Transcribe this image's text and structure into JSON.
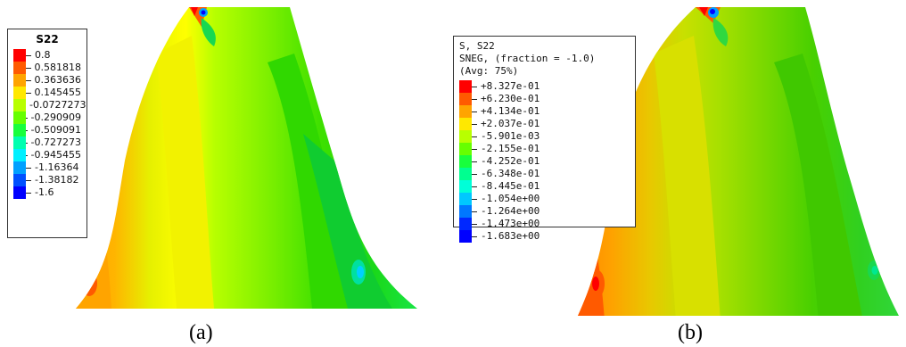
{
  "panel_a": {
    "legend": {
      "title": "S22",
      "entries": [
        {
          "label": "0.8",
          "color": "#ff0000"
        },
        {
          "label": "0.581818",
          "color": "#ff5a00"
        },
        {
          "label": "0.363636",
          "color": "#ffa400"
        },
        {
          "label": "0.145455",
          "color": "#ffe800"
        },
        {
          "label": "-0.0727273",
          "color": "#b8ff00"
        },
        {
          "label": "-0.290909",
          "color": "#66ff00"
        },
        {
          "label": "-0.509091",
          "color": "#18ff3c"
        },
        {
          "label": "-0.727273",
          "color": "#00ffb0"
        },
        {
          "label": "-0.945455",
          "color": "#00f0ff"
        },
        {
          "label": "-1.16364",
          "color": "#00a0ff"
        },
        {
          "label": "-1.38182",
          "color": "#0050ff"
        },
        {
          "label": "-1.6",
          "color": "#0000ff"
        }
      ]
    },
    "caption": "(a)"
  },
  "panel_b": {
    "legend": {
      "header_lines": [
        "S, S22",
        "SNEG, (fraction = -1.0)",
        "(Avg: 75%)"
      ],
      "entries": [
        {
          "label": "+8.327e-01",
          "color": "#ff0000"
        },
        {
          "label": "+6.230e-01",
          "color": "#ff5a00"
        },
        {
          "label": "+4.134e-01",
          "color": "#ffa400"
        },
        {
          "label": "+2.037e-01",
          "color": "#ffe800"
        },
        {
          "label": "-5.901e-03",
          "color": "#b8ff00"
        },
        {
          "label": "-2.155e-01",
          "color": "#66ff00"
        },
        {
          "label": "-4.252e-01",
          "color": "#18ff3c"
        },
        {
          "label": "-6.348e-01",
          "color": "#00ff90"
        },
        {
          "label": "-8.445e-01",
          "color": "#00ffd8"
        },
        {
          "label": "-1.054e+00",
          "color": "#00c8ff"
        },
        {
          "label": "-1.264e+00",
          "color": "#0078ff"
        },
        {
          "label": "-1.473e+00",
          "color": "#0028ff"
        },
        {
          "label": "-1.683e+00",
          "color": "#0000ff"
        }
      ]
    },
    "caption": "(b)"
  }
}
